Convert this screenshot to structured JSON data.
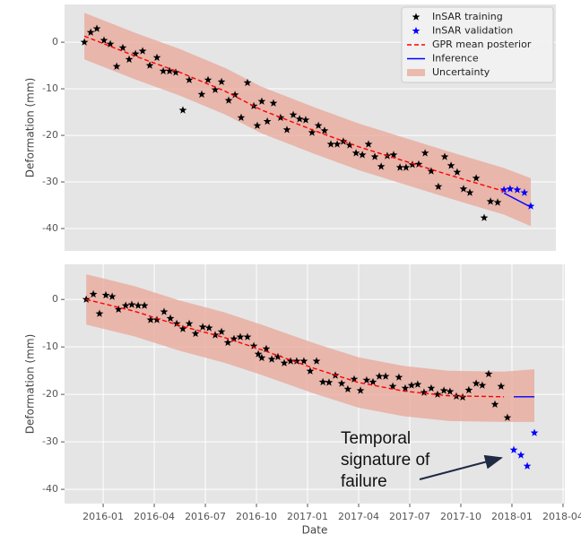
{
  "chart_data": [
    {
      "type": "line",
      "ylabel": "Deformation (mm)",
      "xlim": [
        2015.811,
        2018.215
      ],
      "ylim": [
        -44.8,
        8.1
      ],
      "yticks": [
        0,
        -10,
        -20,
        -30,
        -40
      ],
      "grid": true,
      "legend": "upper right",
      "series": [
        {
          "name": "InSAR training",
          "color": "#000000",
          "marker": "star",
          "x": [
            2015.908,
            2015.939,
            2015.969,
            2016.004,
            2016.035,
            2016.066,
            2016.096,
            2016.127,
            2016.158,
            2016.193,
            2016.228,
            2016.263,
            2016.294,
            2016.325,
            2016.355,
            2016.39,
            2016.421,
            2016.482,
            2016.513,
            2016.548,
            2016.579,
            2016.614,
            2016.645,
            2016.675,
            2016.706,
            2016.737,
            2016.754,
            2016.776,
            2016.803,
            2016.833,
            2016.868,
            2016.899,
            2016.93,
            2016.961,
            2016.991,
            2017.022,
            2017.053,
            2017.083,
            2017.114,
            2017.145,
            2017.175,
            2017.206,
            2017.237,
            2017.268,
            2017.298,
            2017.329,
            2017.36,
            2017.39,
            2017.421,
            2017.452,
            2017.482,
            2017.513,
            2017.544,
            2017.575,
            2017.605,
            2017.64,
            2017.671,
            2017.702,
            2017.732,
            2017.763,
            2017.794,
            2017.825,
            2017.864,
            2017.895,
            2017.93
          ],
          "values": [
            0,
            2.1,
            2.9,
            0.4,
            -0.4,
            -5.2,
            -1.2,
            -3.7,
            -2.5,
            -1.9,
            -5.0,
            -3.3,
            -6.2,
            -6.2,
            -6.5,
            -14.6,
            -8.1,
            -11.2,
            -8.1,
            -10.2,
            -8.5,
            -12.5,
            -11.3,
            -16.2,
            -8.7,
            -13.7,
            -17.9,
            -12.7,
            -17.0,
            -13.1,
            -16.2,
            -18.8,
            -15.6,
            -16.5,
            -16.7,
            -19.4,
            -17.9,
            -19.0,
            -21.9,
            -21.9,
            -21.3,
            -22.1,
            -23.8,
            -24.2,
            -21.9,
            -24.6,
            -26.7,
            -24.4,
            -24.2,
            -26.9,
            -26.9,
            -26.3,
            -26.2,
            -23.8,
            -27.7,
            -31.0,
            -24.6,
            -26.5,
            -27.9,
            -31.5,
            -32.3,
            -29.2,
            -37.7,
            -34.2,
            -34.4
          ]
        },
        {
          "name": "InSAR validation",
          "color": "#0000ff",
          "marker": "star",
          "x": [
            2017.961,
            2017.991,
            2018.026,
            2018.061,
            2018.092
          ],
          "values": [
            -31.7,
            -31.5,
            -31.7,
            -32.3,
            -35.2
          ]
        },
        {
          "name": "GPR mean posterior",
          "color": "#ff0000",
          "dash": true,
          "x": [
            2015.908,
            2016.158,
            2016.377,
            2016.596,
            2016.772,
            2017.035,
            2017.254,
            2017.474,
            2017.693,
            2017.961
          ],
          "values": [
            1.3,
            -3,
            -6.5,
            -10.5,
            -14.5,
            -19,
            -22.5,
            -25.5,
            -28.5,
            -32
          ]
        },
        {
          "name": "Inference",
          "color": "#0000ff",
          "x": [
            2017.961,
            2018.092
          ],
          "values": [
            -32.4,
            -35.4
          ]
        },
        {
          "name": "Uncertainty",
          "color": "#e8a597",
          "band": true,
          "x": [
            2015.908,
            2016.158,
            2016.377,
            2016.596,
            2016.772,
            2017.035,
            2017.254,
            2017.474,
            2017.693,
            2017.961,
            2018.092
          ],
          "lower": [
            -3.7,
            -8,
            -11.5,
            -15.5,
            -19.5,
            -24,
            -27.5,
            -30.5,
            -33.5,
            -37,
            -39.5
          ],
          "upper": [
            6.3,
            2,
            -1.5,
            -5.5,
            -9.5,
            -14,
            -17.5,
            -20.5,
            -23.5,
            -27,
            -29.2
          ]
        }
      ]
    },
    {
      "type": "line",
      "ylabel": "Deformation (mm)",
      "xlabel": "Date",
      "xlim": [
        2015.811,
        2018.259
      ],
      "ylim": [
        -43.0,
        7.4
      ],
      "yticks": [
        0,
        -10,
        -20,
        -30,
        -40
      ],
      "xticks": [
        {
          "value": 2016.0,
          "label": "2016-01"
        },
        {
          "value": 2016.25,
          "label": "2016-04"
        },
        {
          "value": 2016.5,
          "label": "2016-07"
        },
        {
          "value": 2016.75,
          "label": "2016-10"
        },
        {
          "value": 2017.0,
          "label": "2017-01"
        },
        {
          "value": 2017.25,
          "label": "2017-04"
        },
        {
          "value": 2017.5,
          "label": "2017-07"
        },
        {
          "value": 2017.75,
          "label": "2017-10"
        },
        {
          "value": 2018.0,
          "label": "2018-01"
        },
        {
          "value": 2018.25,
          "label": "2018-04"
        }
      ],
      "grid": true,
      "annotation": {
        "text": [
          "Temporal",
          "signature of",
          "failure"
        ]
      },
      "series": [
        {
          "color": "#000000",
          "marker": "star",
          "x": [
            2015.917,
            2015.952,
            2015.982,
            2016.013,
            2016.044,
            2016.075,
            2016.11,
            2016.14,
            2016.171,
            2016.202,
            2016.232,
            2016.263,
            2016.298,
            2016.329,
            2016.36,
            2016.39,
            2016.421,
            2016.452,
            2016.487,
            2016.518,
            2016.548,
            2016.579,
            2016.61,
            2016.64,
            2016.671,
            2016.706,
            2016.737,
            2016.759,
            2016.776,
            2016.798,
            2016.825,
            2016.855,
            2016.886,
            2016.917,
            2016.947,
            2016.982,
            2017.013,
            2017.044,
            2017.075,
            2017.105,
            2017.136,
            2017.167,
            2017.197,
            2017.228,
            2017.259,
            2017.289,
            2017.32,
            2017.351,
            2017.382,
            2017.417,
            2017.447,
            2017.478,
            2017.509,
            2017.539,
            2017.57,
            2017.605,
            2017.636,
            2017.667,
            2017.697,
            2017.728,
            2017.759,
            2017.789,
            2017.825,
            2017.855,
            2017.886,
            2017.917,
            2017.947,
            2017.978
          ],
          "values": [
            0,
            1.1,
            -3.0,
            0.9,
            0.6,
            -2.1,
            -1.3,
            -1.1,
            -1.3,
            -1.3,
            -4.3,
            -4.3,
            -2.6,
            -4.0,
            -5.1,
            -6.2,
            -5.1,
            -7.2,
            -5.8,
            -6.0,
            -7.5,
            -6.8,
            -9.1,
            -8.3,
            -7.9,
            -7.9,
            -9.8,
            -11.5,
            -12.3,
            -10.4,
            -12.6,
            -12.1,
            -13.4,
            -13.0,
            -13.0,
            -13.0,
            -15.1,
            -13.0,
            -17.4,
            -17.5,
            -16.0,
            -17.7,
            -18.9,
            -16.8,
            -19.2,
            -17.0,
            -17.4,
            -16.2,
            -16.2,
            -18.3,
            -16.4,
            -18.7,
            -18.1,
            -17.9,
            -19.6,
            -18.7,
            -20.0,
            -19.2,
            -19.4,
            -20.4,
            -20.6,
            -19.1,
            -17.7,
            -18.1,
            -15.7,
            -22.1,
            -18.3,
            -24.9
          ]
        },
        {
          "color": "#0000ff",
          "marker": "star",
          "x": [
            2018.009,
            2018.044,
            2018.075,
            2018.11
          ],
          "values": [
            -31.7,
            -32.8,
            -35.1,
            -28.1
          ]
        },
        {
          "color": "#ff0000",
          "dash": true,
          "x": [
            2015.917,
            2016.154,
            2016.373,
            2016.592,
            2016.768,
            2017.031,
            2017.25,
            2017.469,
            2017.689,
            2017.961
          ],
          "values": [
            0,
            -2.5,
            -5.5,
            -8,
            -10.5,
            -14.5,
            -17.5,
            -19.3,
            -20.3,
            -20.5
          ]
        },
        {
          "color": "#0000ff",
          "x": [
            2018.009,
            2018.11
          ],
          "values": [
            -20.5,
            -20.5
          ]
        },
        {
          "color": "#e8a597",
          "band": true,
          "x": [
            2015.917,
            2016.154,
            2016.373,
            2016.592,
            2016.768,
            2017.031,
            2017.25,
            2017.469,
            2017.689,
            2017.961,
            2018.11
          ],
          "lower": [
            -5.3,
            -7.8,
            -10.8,
            -13.3,
            -15.8,
            -19.8,
            -22.8,
            -24.6,
            -25.6,
            -25.8,
            -25.8
          ],
          "upper": [
            5.3,
            2.8,
            -0.2,
            -2.7,
            -5.2,
            -9.2,
            -12.2,
            -14.0,
            -15.0,
            -15.2,
            -14.7
          ]
        }
      ]
    }
  ]
}
